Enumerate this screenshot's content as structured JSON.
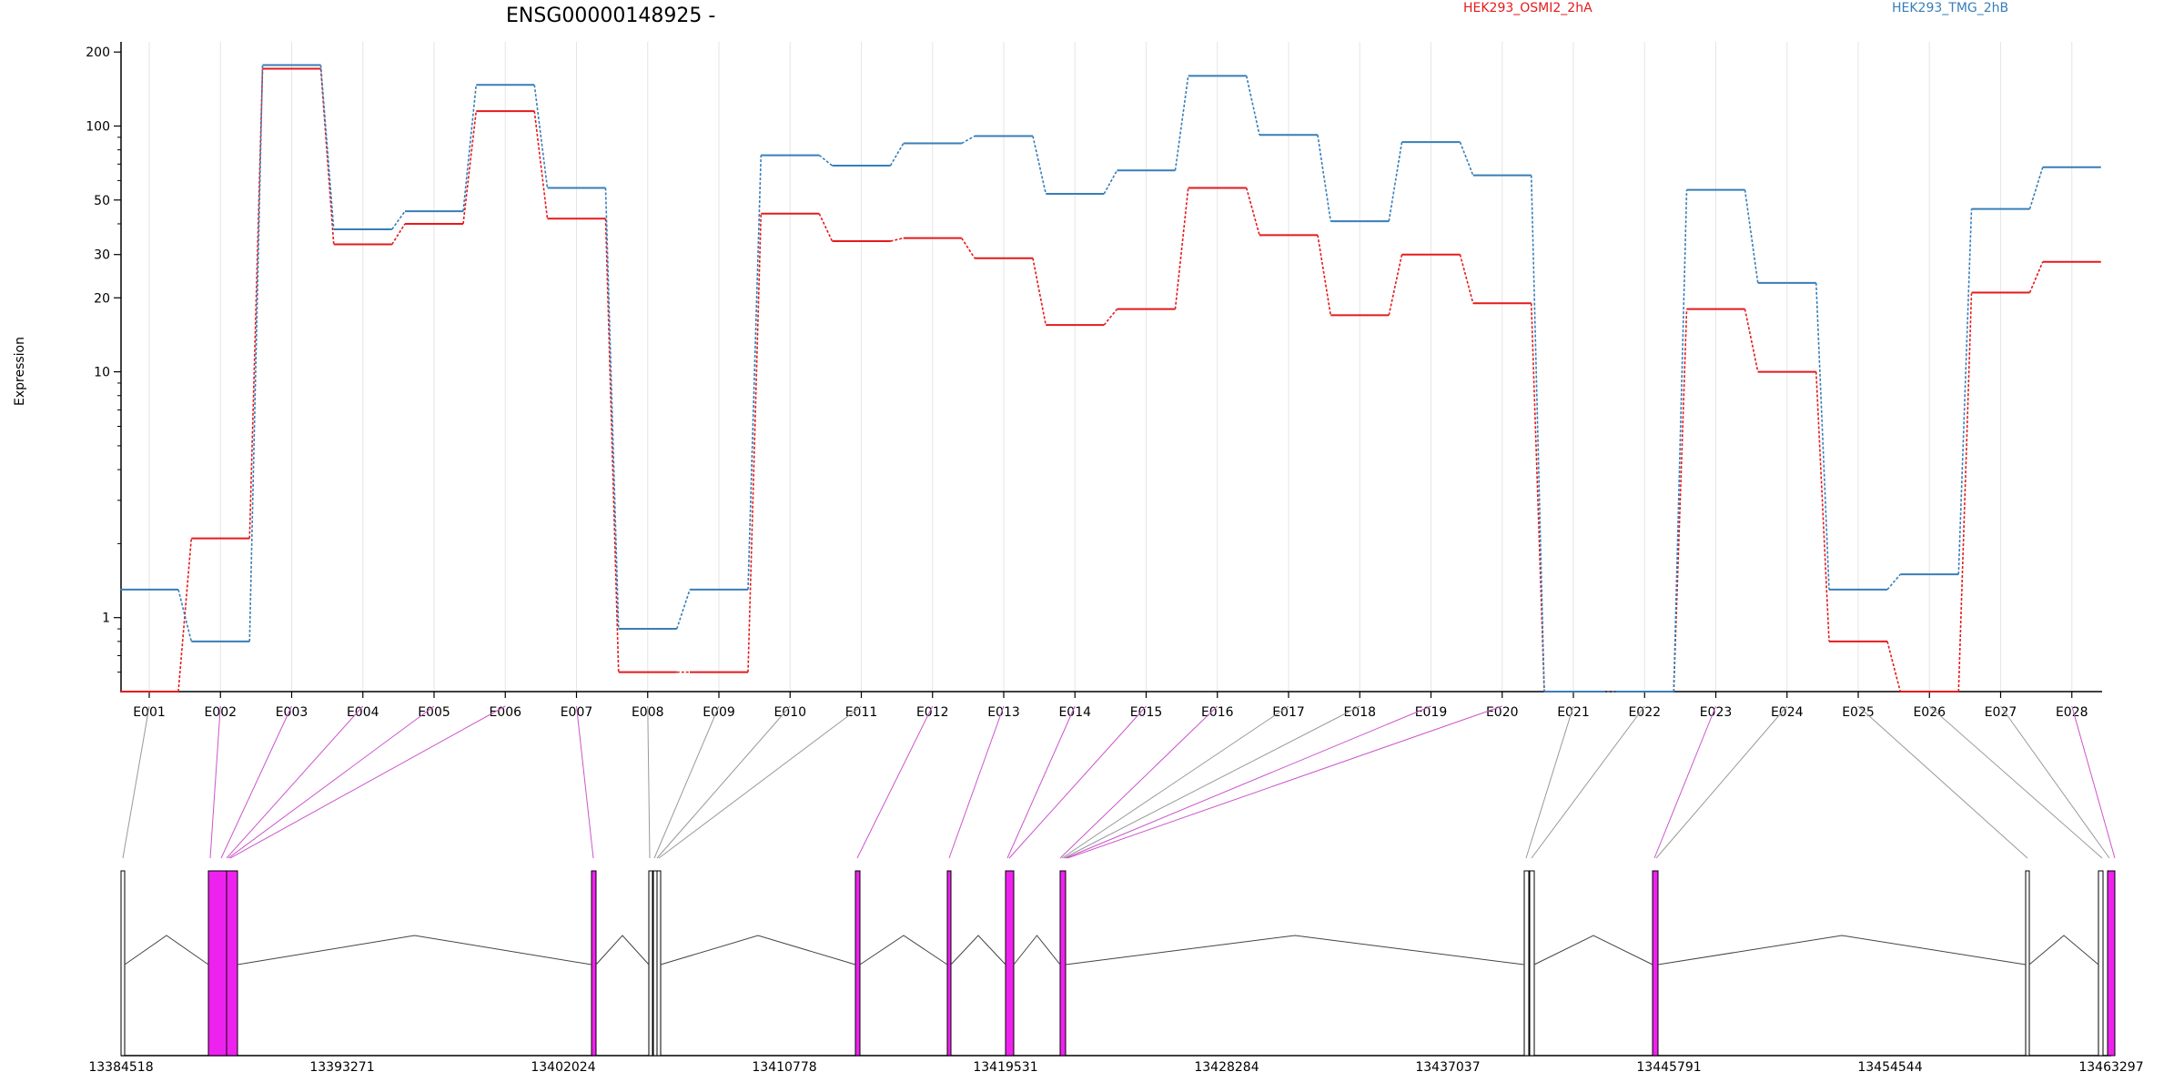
{
  "chart_data": {
    "type": "line",
    "title": "ENSG00000148925 -",
    "ylabel": "Expression",
    "xlabel": "",
    "yscale": "log",
    "ylim": [
      0.5,
      220
    ],
    "yticks": [
      1,
      10,
      20,
      30,
      50,
      100,
      200
    ],
    "ytick_labels": [
      "1",
      "10",
      "20",
      "30",
      "50",
      "100",
      "200"
    ],
    "grid": "vertical",
    "legend_position": "top",
    "categories": [
      "E001",
      "E002",
      "E003",
      "E004",
      "E005",
      "E006",
      "E007",
      "E008",
      "E009",
      "E010",
      "E011",
      "E012",
      "E013",
      "E014",
      "E015",
      "E016",
      "E017",
      "E018",
      "E019",
      "E020",
      "E021",
      "E022",
      "E023",
      "E024",
      "E025",
      "E026",
      "E027",
      "E028"
    ],
    "series": [
      {
        "name": "HEK293_OSMI2_2hA",
        "color": "#e41a1c",
        "values": [
          0.5,
          2.1,
          171,
          33,
          40,
          115,
          42,
          0.6,
          0.6,
          44,
          34,
          35,
          29,
          15.5,
          18,
          56,
          36,
          17,
          30,
          19,
          0.5,
          0.5,
          18,
          10,
          0.8,
          0.5,
          21,
          28
        ]
      },
      {
        "name": "HEK293_TMG_2hB",
        "color": "#377eb8",
        "values": [
          1.3,
          0.8,
          177,
          38,
          45,
          147,
          56,
          0.9,
          1.3,
          76,
          69,
          85,
          91,
          53,
          66,
          160,
          92,
          41,
          86,
          63,
          0.5,
          0.5,
          55,
          23,
          1.3,
          1.5,
          46,
          68
        ]
      }
    ],
    "gene_model": {
      "coordinate_ticks": [
        "13384518",
        "13393271",
        "13402024",
        "13410778",
        "13419531",
        "13428284",
        "13437037",
        "13445791",
        "13454544",
        "13463297"
      ],
      "exon_colors": {
        "highlighted": "#ee22ee",
        "normal": "#ffffff"
      }
    }
  }
}
